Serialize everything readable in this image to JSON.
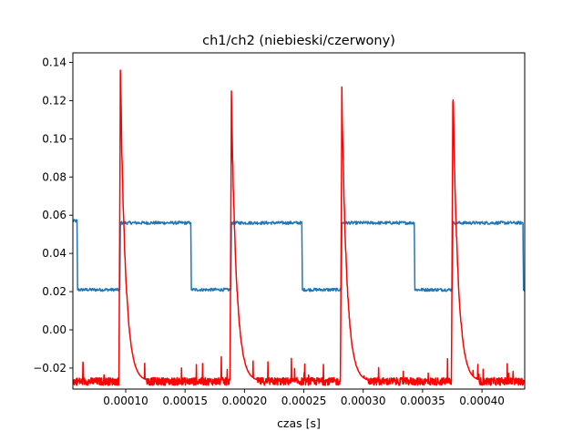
{
  "chart_data": {
    "type": "line",
    "title": "ch1/ch2 (niebieski/czerwony)",
    "xlabel": "czas [s]",
    "ylabel": "",
    "xlim": [
      5.55e-05,
      0.000436
    ],
    "ylim": [
      -0.031,
      0.145
    ],
    "grid": false,
    "xticks": [
      0.0001,
      0.00015,
      0.0002,
      0.00025,
      0.0003,
      0.00035,
      0.0004
    ],
    "xtick_labels": [
      "0.00010",
      "0.00015",
      "0.00020",
      "0.00025",
      "0.00030",
      "0.00035",
      "0.00040"
    ],
    "yticks": [
      -0.02,
      0.0,
      0.02,
      0.04,
      0.06,
      0.08,
      0.1,
      0.12,
      0.14
    ],
    "ytick_labels": [
      "−0.02",
      "0.00",
      "0.02",
      "0.04",
      "0.06",
      "0.08",
      "0.10",
      "0.12",
      "0.14"
    ],
    "series": [
      {
        "color": "#1f77b4",
        "style": "square-wave",
        "high_level": 0.056,
        "low_level": 0.021,
        "points": [
          [
            5.55e-05,
            0.057
          ],
          [
            5.9e-05,
            0.057
          ],
          [
            5.95e-05,
            0.021
          ],
          [
            9.5e-05,
            0.021
          ],
          [
            9.55e-05,
            0.056
          ],
          [
            0.0001548,
            0.056
          ],
          [
            0.0001553,
            0.021
          ],
          [
            0.0001885,
            0.021
          ],
          [
            0.000189,
            0.056
          ],
          [
            0.0002483,
            0.056
          ],
          [
            0.0002488,
            0.021
          ],
          [
            0.0002815,
            0.021
          ],
          [
            0.000282,
            0.056
          ],
          [
            0.000343,
            0.056
          ],
          [
            0.0003435,
            0.021
          ],
          [
            0.000375,
            0.021
          ],
          [
            0.0003755,
            0.056
          ],
          [
            0.0004345,
            0.056
          ],
          [
            0.000435,
            0.021
          ],
          [
            0.000436,
            0.021
          ]
        ]
      },
      {
        "color": "#ff0000",
        "style": "decaying-pulses",
        "baseline": -0.027,
        "pulses": [
          {
            "x": 9.55e-05,
            "peak": 0.137
          },
          {
            "x": 0.000189,
            "peak": 0.123
          },
          {
            "x": 0.000282,
            "peak": 0.123
          },
          {
            "x": 0.0003755,
            "peak": 0.132
          }
        ]
      }
    ]
  }
}
